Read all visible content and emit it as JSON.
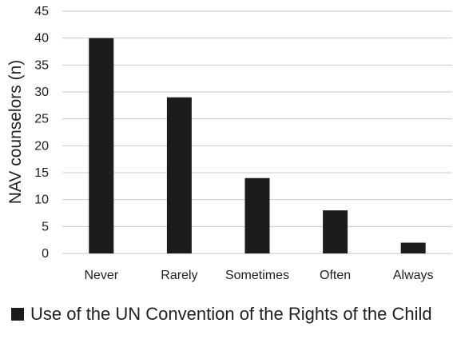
{
  "chart_data": {
    "type": "bar",
    "categories": [
      "Never",
      "Rarely",
      "Sometimes",
      "Often",
      "Always"
    ],
    "series": [
      {
        "name": "Use of the UN Convention of the Rights of the Child",
        "values": [
          40,
          29,
          14,
          8,
          2
        ]
      }
    ],
    "ylabel": "NAV counselors (n)",
    "ylim": [
      0,
      45
    ],
    "yticks": [
      0,
      5,
      10,
      15,
      20,
      25,
      30,
      35,
      40,
      45
    ],
    "grid": true,
    "legend_position": "bottom",
    "bar_color": "#1c1c1c",
    "grid_color": "#c8c8c8"
  }
}
